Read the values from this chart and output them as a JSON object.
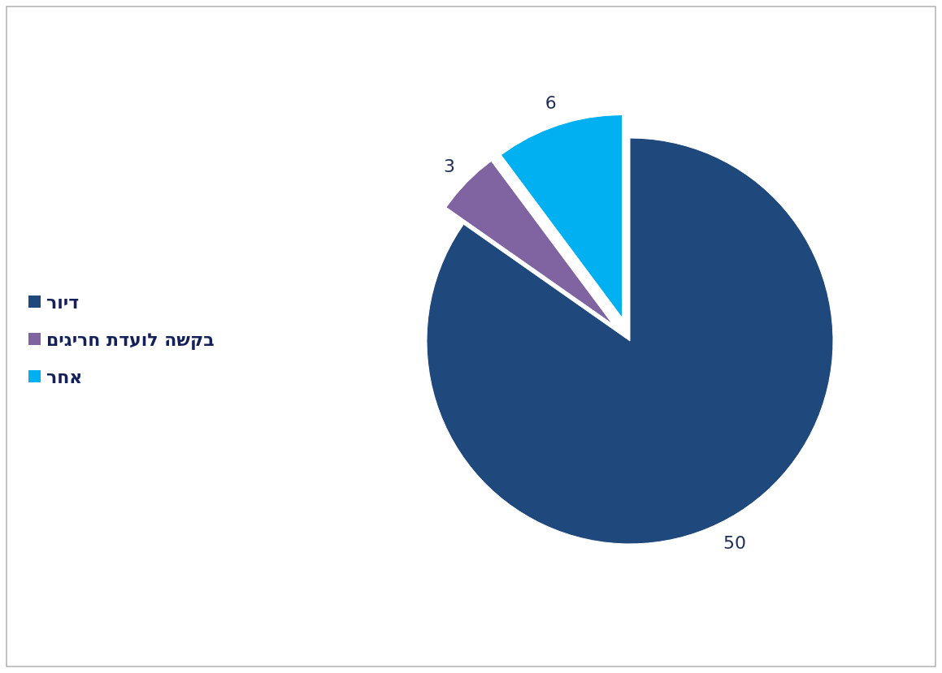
{
  "chart_data": {
    "type": "pie",
    "categories": [
      "דיור",
      "בקשה לועדת חריגים",
      "אחר"
    ],
    "values": [
      50,
      3,
      6
    ],
    "colors": [
      "#1f497d",
      "#8064a2",
      "#00b0f0"
    ],
    "data_labels": true,
    "legend": "left"
  }
}
